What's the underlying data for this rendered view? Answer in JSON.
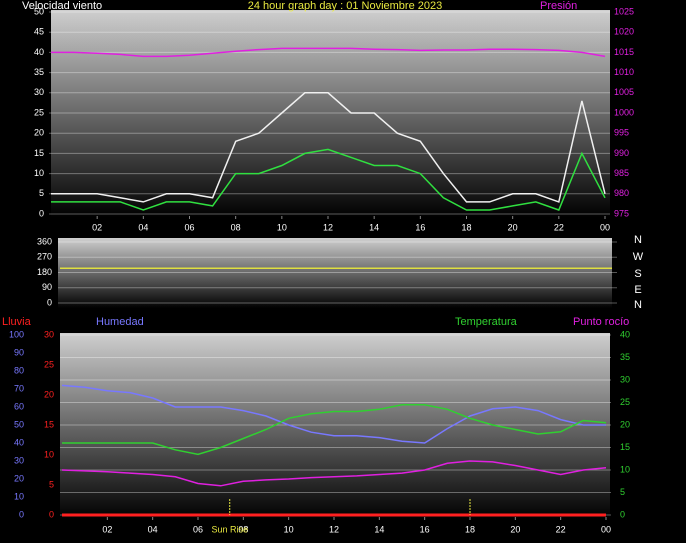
{
  "chart_data": [
    {
      "type": "line",
      "title": "24 hour graph day : 01 Noviembre 2023",
      "y_label": "Velocidad viento",
      "y2_label": "Presión",
      "x": [
        0,
        1,
        2,
        3,
        4,
        5,
        6,
        7,
        8,
        9,
        10,
        11,
        12,
        13,
        14,
        15,
        16,
        17,
        18,
        19,
        20,
        21,
        22,
        23,
        24
      ],
      "xlim": [
        0,
        24
      ],
      "xticks": [
        {
          "value": 2,
          "label": "02"
        },
        {
          "value": 4,
          "label": "04"
        },
        {
          "value": 6,
          "label": "06"
        },
        {
          "value": 8,
          "label": "08"
        },
        10,
        12,
        14,
        16,
        18,
        20,
        22,
        {
          "value": 24,
          "label": "00"
        }
      ],
      "ylim": [
        0,
        50
      ],
      "yticks": [
        0,
        5,
        10,
        15,
        20,
        25,
        30,
        35,
        40,
        45,
        50
      ],
      "y2lim": [
        975,
        1025
      ],
      "y2ticks": [
        975,
        980,
        985,
        990,
        995,
        1000,
        1005,
        1010,
        1015,
        1020,
        1025
      ],
      "grid": "y",
      "series": [
        {
          "color": "#f0f0f0",
          "axis": "y",
          "values": [
            5,
            5,
            5,
            4,
            3,
            5,
            5,
            4,
            18,
            20,
            25,
            30,
            30,
            25,
            25,
            20,
            18,
            10,
            3,
            3,
            5,
            5,
            3,
            28,
            5
          ]
        },
        {
          "color": "#30e040",
          "axis": "y",
          "values": [
            3,
            3,
            3,
            3,
            1,
            3,
            3,
            2,
            10,
            10,
            12,
            15,
            16,
            14,
            12,
            12,
            10,
            4,
            1,
            1,
            2,
            3,
            1,
            15,
            4
          ]
        },
        {
          "color": "#e020e0",
          "axis": "y2",
          "values": [
            1015,
            1015,
            1014.8,
            1014.5,
            1014,
            1014,
            1014.3,
            1014.8,
            1015.3,
            1015.7,
            1016,
            1016,
            1016,
            1016,
            1015.8,
            1015.7,
            1015.5,
            1015.6,
            1015.6,
            1015.8,
            1015.8,
            1015.7,
            1015.5,
            1015,
            1014
          ]
        }
      ]
    },
    {
      "type": "line",
      "xlim": [
        0,
        24
      ],
      "x": [
        0,
        1,
        2,
        3,
        4,
        5,
        6,
        7,
        8,
        9,
        10,
        11,
        12,
        13,
        14,
        15,
        16,
        17,
        18,
        19,
        20,
        21,
        22,
        23,
        24
      ],
      "ylim": [
        0,
        360
      ],
      "yticks": [
        0,
        90,
        180,
        270,
        360
      ],
      "grid": "y",
      "compass": [
        "N",
        "W",
        "S",
        "E",
        "N"
      ],
      "series": [
        {
          "color": "#e0e040",
          "axis": "y",
          "values": [
            205,
            205,
            205,
            205,
            205,
            205,
            205,
            205,
            205,
            205,
            205,
            205,
            205,
            205,
            205,
            205,
            205,
            205,
            205,
            205,
            205,
            205,
            205,
            205,
            205
          ]
        }
      ]
    },
    {
      "type": "line",
      "x": [
        0,
        1,
        2,
        3,
        4,
        5,
        6,
        7,
        8,
        9,
        10,
        11,
        12,
        13,
        14,
        15,
        16,
        17,
        18,
        19,
        20,
        21,
        22,
        23,
        24
      ],
      "xlim": [
        0,
        24
      ],
      "xticks": [
        {
          "value": 2,
          "label": "02"
        },
        {
          "value": 4,
          "label": "04"
        },
        {
          "value": 6,
          "label": "06"
        },
        {
          "value": 8,
          "label": "08"
        },
        10,
        12,
        14,
        16,
        18,
        20,
        22,
        {
          "value": 24,
          "label": "00"
        }
      ],
      "ylim": [
        0,
        30
      ],
      "yticks": [
        0,
        5,
        10,
        15,
        20,
        25,
        30
      ],
      "y3lim": [
        0,
        100
      ],
      "y3ticks": [
        0,
        10,
        20,
        30,
        40,
        50,
        60,
        70,
        80,
        90,
        100
      ],
      "y2lim": [
        0,
        40
      ],
      "y2ticks": [
        0,
        5,
        10,
        15,
        20,
        25,
        30,
        35,
        40
      ],
      "grid": "y2",
      "series": [
        {
          "name": "Lluvia",
          "color": "#ff2020",
          "axis": "y",
          "values": [
            0,
            0,
            0,
            0,
            0,
            0,
            0,
            0,
            0,
            0,
            0,
            0,
            0,
            0,
            0,
            0,
            0,
            0,
            0,
            0,
            0,
            0,
            0,
            0,
            0
          ]
        },
        {
          "name": "Humedad",
          "color": "#7878ff",
          "axis": "y3",
          "values": [
            72,
            71,
            69,
            68,
            65,
            60,
            60,
            60,
            58,
            55,
            50,
            46,
            44,
            44,
            43,
            41,
            40,
            48,
            55,
            59,
            60,
            58,
            53,
            50,
            50
          ]
        },
        {
          "name": "Temperatura",
          "color": "#30d030",
          "axis": "y2",
          "values": [
            16,
            16,
            16,
            16,
            16,
            14.5,
            13.5,
            15,
            17,
            19,
            21.5,
            22.5,
            23,
            23,
            23.5,
            24.5,
            24.5,
            23.5,
            21.5,
            20,
            19,
            18,
            18.5,
            21,
            20.5
          ]
        },
        {
          "name": "Punto rocío",
          "color": "#e020e0",
          "axis": "y2",
          "values": [
            10,
            9.8,
            9.6,
            9.3,
            9,
            8.5,
            7,
            6.5,
            7.5,
            7.8,
            8,
            8.3,
            8.5,
            8.7,
            9,
            9.3,
            10,
            11.5,
            12,
            11.8,
            11,
            10,
            9,
            10,
            10.5
          ]
        }
      ],
      "annotations": [
        {
          "x": 7.4,
          "label": "Sun Rise"
        },
        {
          "x": 18
        }
      ]
    }
  ]
}
